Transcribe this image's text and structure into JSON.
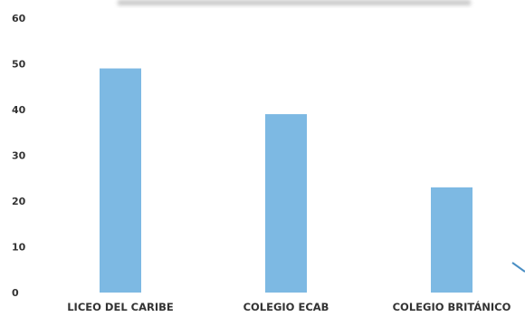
{
  "chart_data": {
    "type": "bar",
    "categories": [
      "LICEO DEL CARIBE",
      "COLEGIO ECAB",
      "COLEGIO BRITÁNICO"
    ],
    "values": [
      49,
      39,
      23
    ],
    "ylim": [
      0,
      60
    ],
    "yticks": [
      0,
      10,
      20,
      30,
      40,
      50,
      60
    ],
    "title": "",
    "xlabel": "",
    "ylabel": "",
    "grid": false,
    "bar_color": "#7db9e3"
  }
}
